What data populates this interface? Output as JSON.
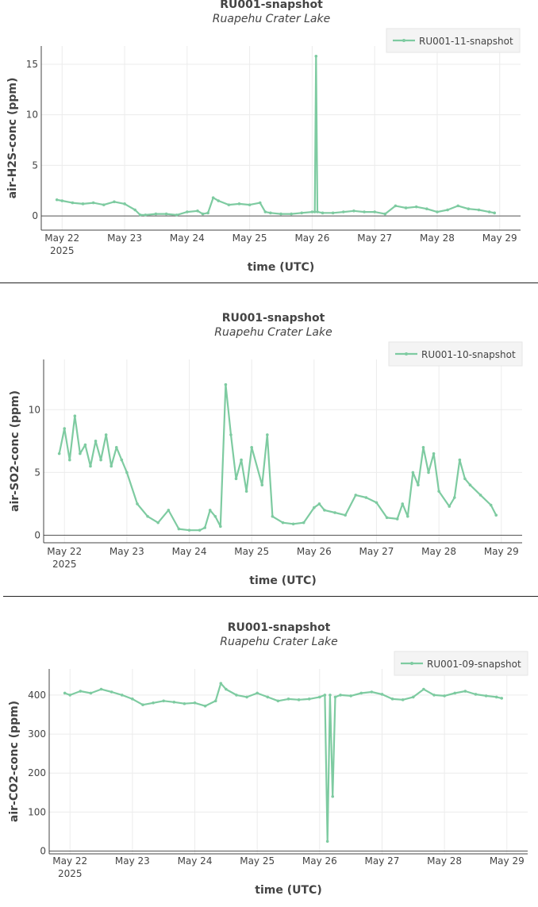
{
  "chart_data": [
    {
      "type": "line",
      "title": "RU001-snapshot",
      "subtitle": "Ruapehu Crater Lake",
      "xlabel": "time (UTC)",
      "ylabel": "air-H2S-conc (ppm)",
      "x_ticks": [
        "May 22",
        "May 23",
        "May 24",
        "May 25",
        "May 26",
        "May 27",
        "May 28",
        "May 29"
      ],
      "x_year": "2025",
      "xlim": [
        "2025-05-21 16:00",
        "2025-05-29 08:00"
      ],
      "ylim": [
        -1.4,
        16.8
      ],
      "y_ticks": [
        0,
        5,
        10,
        15
      ],
      "grid": true,
      "legend": "top-right",
      "color": "#7ecba1",
      "series": [
        {
          "name": "RU001-11-snapshot",
          "x": [
            "2025-05-21 22:00",
            "2025-05-22 00:00",
            "2025-05-22 04:00",
            "2025-05-22 08:00",
            "2025-05-22 12:00",
            "2025-05-22 16:00",
            "2025-05-22 20:00",
            "2025-05-23 00:00",
            "2025-05-23 04:00",
            "2025-05-23 06:00",
            "2025-05-23 08:00",
            "2025-05-23 12:00",
            "2025-05-23 16:00",
            "2025-05-23 20:00",
            "2025-05-24 00:00",
            "2025-05-24 04:00",
            "2025-05-24 06:00",
            "2025-05-24 08:00",
            "2025-05-24 10:00",
            "2025-05-24 12:00",
            "2025-05-24 16:00",
            "2025-05-24 20:00",
            "2025-05-25 00:00",
            "2025-05-25 04:00",
            "2025-05-25 06:00",
            "2025-05-25 08:00",
            "2025-05-25 12:00",
            "2025-05-25 16:00",
            "2025-05-25 20:00",
            "2025-05-26 00:00",
            "2025-05-26 01:00",
            "2025-05-26 01:30",
            "2025-05-26 02:00",
            "2025-05-26 04:00",
            "2025-05-26 08:00",
            "2025-05-26 12:00",
            "2025-05-26 16:00",
            "2025-05-26 20:00",
            "2025-05-27 00:00",
            "2025-05-27 04:00",
            "2025-05-27 08:00",
            "2025-05-27 12:00",
            "2025-05-27 16:00",
            "2025-05-27 20:00",
            "2025-05-28 00:00",
            "2025-05-28 04:00",
            "2025-05-28 08:00",
            "2025-05-28 12:00",
            "2025-05-28 16:00",
            "2025-05-28 20:00",
            "2025-05-28 22:00"
          ],
          "y": [
            1.6,
            1.5,
            1.3,
            1.2,
            1.3,
            1.1,
            1.4,
            1.2,
            0.6,
            0.1,
            0.1,
            0.2,
            0.2,
            0.1,
            0.4,
            0.5,
            0.2,
            0.3,
            1.8,
            1.5,
            1.1,
            1.2,
            1.1,
            1.3,
            0.4,
            0.3,
            0.2,
            0.2,
            0.3,
            0.4,
            0.4,
            15.8,
            0.4,
            0.3,
            0.3,
            0.4,
            0.5,
            0.4,
            0.4,
            0.2,
            1.0,
            0.8,
            0.9,
            0.7,
            0.4,
            0.6,
            1.0,
            0.7,
            0.6,
            0.4,
            0.3
          ]
        }
      ]
    },
    {
      "type": "line",
      "title": "RU001-snapshot",
      "subtitle": "Ruapehu Crater Lake",
      "xlabel": "time (UTC)",
      "ylabel": "air-SO2-conc (ppm)",
      "x_ticks": [
        "May 22",
        "May 23",
        "May 24",
        "May 25",
        "May 26",
        "May 27",
        "May 28",
        "May 29"
      ],
      "x_year": "2025",
      "xlim": [
        "2025-05-21 16:00",
        "2025-05-29 08:00"
      ],
      "ylim": [
        -0.6,
        14
      ],
      "y_ticks": [
        0,
        5,
        10
      ],
      "grid": true,
      "legend": "top-right",
      "color": "#7ecba1",
      "series": [
        {
          "name": "RU001-10-snapshot",
          "x": [
            "2025-05-21 22:00",
            "2025-05-22 00:00",
            "2025-05-22 02:00",
            "2025-05-22 04:00",
            "2025-05-22 06:00",
            "2025-05-22 08:00",
            "2025-05-22 10:00",
            "2025-05-22 12:00",
            "2025-05-22 14:00",
            "2025-05-22 16:00",
            "2025-05-22 18:00",
            "2025-05-22 20:00",
            "2025-05-22 22:00",
            "2025-05-23 00:00",
            "2025-05-23 04:00",
            "2025-05-23 08:00",
            "2025-05-23 12:00",
            "2025-05-23 16:00",
            "2025-05-23 20:00",
            "2025-05-24 00:00",
            "2025-05-24 04:00",
            "2025-05-24 06:00",
            "2025-05-24 08:00",
            "2025-05-24 10:00",
            "2025-05-24 12:00",
            "2025-05-24 14:00",
            "2025-05-24 16:00",
            "2025-05-24 18:00",
            "2025-05-24 20:00",
            "2025-05-24 22:00",
            "2025-05-25 00:00",
            "2025-05-25 04:00",
            "2025-05-25 06:00",
            "2025-05-25 08:00",
            "2025-05-25 12:00",
            "2025-05-25 16:00",
            "2025-05-25 20:00",
            "2025-05-26 00:00",
            "2025-05-26 02:00",
            "2025-05-26 04:00",
            "2025-05-26 08:00",
            "2025-05-26 12:00",
            "2025-05-26 16:00",
            "2025-05-26 20:00",
            "2025-05-27 00:00",
            "2025-05-27 04:00",
            "2025-05-27 08:00",
            "2025-05-27 10:00",
            "2025-05-27 12:00",
            "2025-05-27 14:00",
            "2025-05-27 16:00",
            "2025-05-27 18:00",
            "2025-05-27 20:00",
            "2025-05-27 22:00",
            "2025-05-28 00:00",
            "2025-05-28 04:00",
            "2025-05-28 06:00",
            "2025-05-28 08:00",
            "2025-05-28 10:00",
            "2025-05-28 12:00",
            "2025-05-28 16:00",
            "2025-05-28 20:00",
            "2025-05-28 22:00"
          ],
          "y": [
            6.5,
            8.5,
            6.0,
            9.5,
            6.5,
            7.2,
            5.5,
            7.5,
            6.0,
            8.0,
            5.5,
            7.0,
            6.0,
            5.0,
            2.5,
            1.5,
            1.0,
            2.0,
            0.5,
            0.4,
            0.4,
            0.6,
            2.0,
            1.5,
            0.7,
            12.0,
            8.0,
            4.5,
            6.0,
            3.5,
            7.0,
            4.0,
            8.0,
            1.5,
            1.0,
            0.9,
            1.0,
            2.2,
            2.5,
            2.0,
            1.8,
            1.6,
            3.2,
            3.0,
            2.6,
            1.4,
            1.3,
            2.5,
            1.5,
            5.0,
            4.0,
            7.0,
            5.0,
            6.5,
            3.5,
            2.3,
            3.0,
            6.0,
            4.5,
            4.0,
            3.2,
            2.4,
            1.6
          ]
        }
      ]
    },
    {
      "type": "line",
      "title": "RU001-snapshot",
      "subtitle": "Ruapehu Crater Lake",
      "xlabel": "time (UTC)",
      "ylabel": "air-CO2-conc (ppm)",
      "x_ticks": [
        "May 22",
        "May 23",
        "May 24",
        "May 25",
        "May 26",
        "May 27",
        "May 28",
        "May 29"
      ],
      "x_year": "2025",
      "xlim": [
        "2025-05-21 16:00",
        "2025-05-29 08:00"
      ],
      "ylim": [
        -7,
        467
      ],
      "y_ticks": [
        0,
        100,
        200,
        300,
        400
      ],
      "grid": true,
      "legend": "top-right",
      "color": "#7ecba1",
      "series": [
        {
          "name": "RU001-09-snapshot",
          "x": [
            "2025-05-21 22:00",
            "2025-05-22 00:00",
            "2025-05-22 04:00",
            "2025-05-22 08:00",
            "2025-05-22 12:00",
            "2025-05-22 16:00",
            "2025-05-22 20:00",
            "2025-05-23 00:00",
            "2025-05-23 04:00",
            "2025-05-23 08:00",
            "2025-05-23 12:00",
            "2025-05-23 16:00",
            "2025-05-23 20:00",
            "2025-05-24 00:00",
            "2025-05-24 04:00",
            "2025-05-24 08:00",
            "2025-05-24 10:00",
            "2025-05-24 12:00",
            "2025-05-24 16:00",
            "2025-05-24 20:00",
            "2025-05-25 00:00",
            "2025-05-25 04:00",
            "2025-05-25 08:00",
            "2025-05-25 12:00",
            "2025-05-25 16:00",
            "2025-05-25 20:00",
            "2025-05-26 00:00",
            "2025-05-26 02:00",
            "2025-05-26 03:00",
            "2025-05-26 04:00",
            "2025-05-26 05:00",
            "2025-05-26 06:00",
            "2025-05-26 08:00",
            "2025-05-26 12:00",
            "2025-05-26 16:00",
            "2025-05-26 20:00",
            "2025-05-27 00:00",
            "2025-05-27 04:00",
            "2025-05-27 08:00",
            "2025-05-27 12:00",
            "2025-05-27 16:00",
            "2025-05-27 20:00",
            "2025-05-28 00:00",
            "2025-05-28 04:00",
            "2025-05-28 08:00",
            "2025-05-28 12:00",
            "2025-05-28 16:00",
            "2025-05-28 20:00",
            "2025-05-28 22:00"
          ],
          "y": [
            405,
            400,
            410,
            405,
            415,
            408,
            400,
            390,
            375,
            380,
            385,
            382,
            378,
            380,
            372,
            385,
            430,
            415,
            400,
            395,
            405,
            395,
            385,
            390,
            388,
            390,
            395,
            400,
            25,
            400,
            140,
            395,
            400,
            398,
            405,
            408,
            402,
            390,
            388,
            395,
            415,
            400,
            398,
            405,
            410,
            402,
            398,
            395,
            392
          ]
        }
      ]
    }
  ]
}
